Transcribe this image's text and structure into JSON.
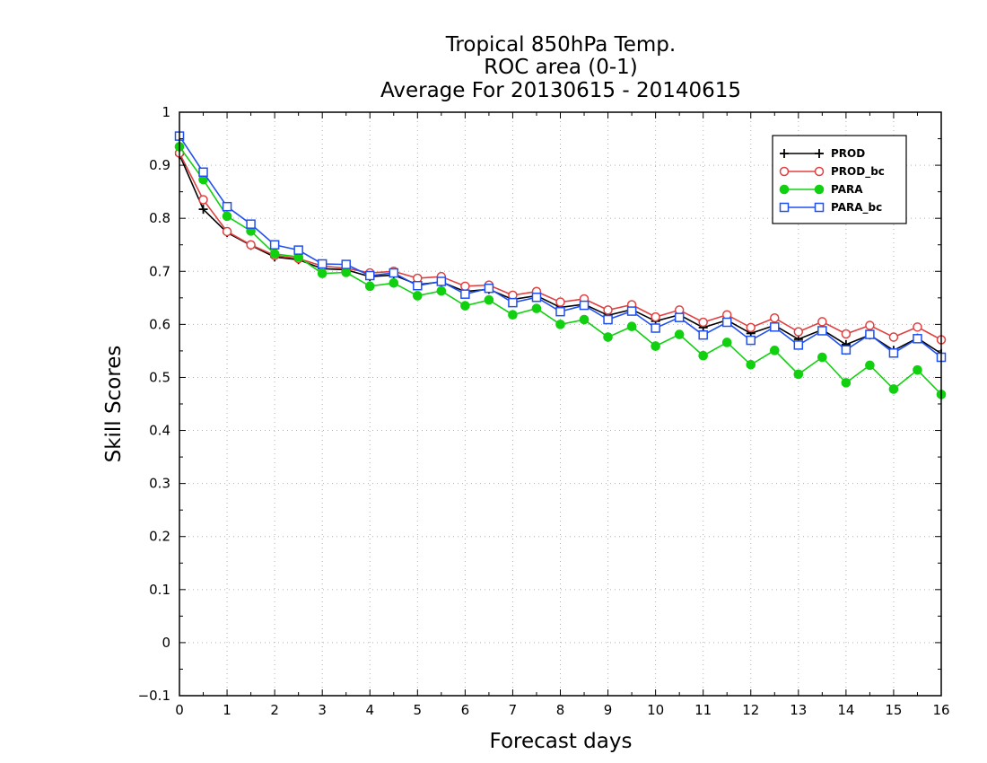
{
  "chart_data": {
    "type": "line",
    "title_lines": [
      "Tropical 850hPa Temp.",
      "ROC area (0-1)",
      "Average For 20130615 - 20140615"
    ],
    "xlabel": "Forecast days",
    "ylabel": "Skill Scores",
    "xlim": [
      0,
      16
    ],
    "ylim": [
      -0.1,
      1
    ],
    "xticks": [
      "0",
      "1",
      "2",
      "3",
      "4",
      "5",
      "6",
      "7",
      "8",
      "9",
      "10",
      "11",
      "12",
      "13",
      "14",
      "15",
      "16"
    ],
    "yticks": [
      "−0.1",
      "0",
      "0.1",
      "0.2",
      "0.3",
      "0.4",
      "0.5",
      "0.6",
      "0.7",
      "0.8",
      "0.9",
      "1"
    ],
    "grid": true,
    "legend_position": "top-right",
    "x": [
      0,
      0.5,
      1,
      1.5,
      2,
      2.5,
      3,
      3.5,
      4,
      4.5,
      5,
      5.5,
      6,
      6.5,
      7,
      7.5,
      8,
      8.5,
      9,
      9.5,
      10,
      10.5,
      11,
      11.5,
      12,
      12.5,
      13,
      13.5,
      14,
      14.5,
      15,
      15.5,
      16
    ],
    "series": [
      {
        "name": "PROD",
        "color": "#000000",
        "marker": "plus",
        "values": [
          0.92,
          0.817,
          0.773,
          0.749,
          0.727,
          0.722,
          0.705,
          0.703,
          0.69,
          0.693,
          0.675,
          0.68,
          0.662,
          0.666,
          0.647,
          0.654,
          0.632,
          0.638,
          0.617,
          0.628,
          0.606,
          0.618,
          0.594,
          0.608,
          0.583,
          0.598,
          0.572,
          0.59,
          0.562,
          0.58,
          0.551,
          0.574,
          0.545
        ]
      },
      {
        "name": "PROD_bc",
        "color": "#e04040",
        "marker": "open-circle",
        "values": [
          0.923,
          0.835,
          0.775,
          0.75,
          0.73,
          0.724,
          0.71,
          0.706,
          0.697,
          0.7,
          0.687,
          0.69,
          0.672,
          0.674,
          0.655,
          0.662,
          0.642,
          0.648,
          0.627,
          0.637,
          0.614,
          0.627,
          0.604,
          0.618,
          0.594,
          0.612,
          0.586,
          0.605,
          0.582,
          0.598,
          0.576,
          0.595,
          0.571
        ]
      },
      {
        "name": "PARA",
        "color": "#10d010",
        "marker": "filled-circle",
        "values": [
          0.935,
          0.873,
          0.804,
          0.776,
          0.733,
          0.727,
          0.696,
          0.698,
          0.672,
          0.678,
          0.654,
          0.663,
          0.635,
          0.646,
          0.618,
          0.63,
          0.6,
          0.609,
          0.576,
          0.596,
          0.559,
          0.581,
          0.541,
          0.566,
          0.524,
          0.551,
          0.506,
          0.538,
          0.49,
          0.523,
          0.478,
          0.514,
          0.468
        ]
      },
      {
        "name": "PARA_bc",
        "color": "#2050f0",
        "marker": "open-square",
        "values": [
          0.955,
          0.887,
          0.822,
          0.789,
          0.75,
          0.74,
          0.714,
          0.713,
          0.692,
          0.697,
          0.673,
          0.681,
          0.657,
          0.668,
          0.641,
          0.651,
          0.624,
          0.636,
          0.609,
          0.625,
          0.593,
          0.613,
          0.58,
          0.604,
          0.57,
          0.595,
          0.561,
          0.588,
          0.552,
          0.581,
          0.546,
          0.573,
          0.538
        ]
      }
    ]
  }
}
